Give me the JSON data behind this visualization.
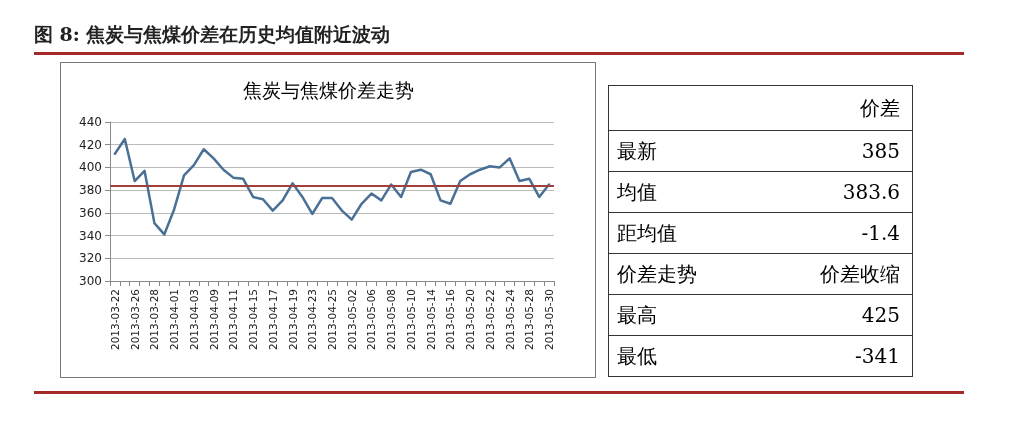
{
  "chart_data": [
    {
      "type": "line",
      "title": "图 8: 焦炭与焦煤价差在历史均值附近波动",
      "subtitle": "焦炭与焦煤价差走势",
      "categories": [
        "2013-03-22",
        null,
        "2013-03-26",
        null,
        "2013-03-28",
        null,
        "2013-04-01",
        null,
        "2013-04-03",
        null,
        "2013-04-09",
        null,
        "2013-04-11",
        null,
        "2013-04-15",
        null,
        "2013-04-17",
        null,
        "2013-04-19",
        null,
        "2013-04-23",
        null,
        "2013-04-25",
        null,
        "2013-05-02",
        null,
        "2013-05-06",
        null,
        "2013-05-08",
        null,
        "2013-05-10",
        null,
        "2013-05-14",
        null,
        "2013-05-16",
        null,
        "2013-05-20",
        null,
        "2013-05-22",
        null,
        "2013-05-24",
        null,
        "2013-05-28",
        null,
        "2013-05-30"
      ],
      "series": [
        {
          "color": "#4a7096",
          "values": [
            412,
            425,
            388,
            397,
            351,
            341,
            363,
            393,
            402,
            416,
            408,
            398,
            391,
            390,
            374,
            372,
            362,
            371,
            386,
            374,
            359,
            373,
            373,
            362,
            354,
            368,
            377,
            371,
            385,
            374,
            396,
            398,
            394,
            371,
            368,
            388,
            394,
            398,
            401,
            400,
            408,
            388,
            390,
            374,
            385
          ]
        }
      ],
      "ylim": [
        300,
        440
      ],
      "yticks": [
        300,
        320,
        340,
        360,
        380,
        400,
        420,
        440
      ],
      "ref_lines": [
        {
          "axis": "y",
          "value": 383.6,
          "color": "#a0403c"
        }
      ],
      "grid": "y",
      "marker": "none",
      "line_style": "solid"
    },
    {
      "type": "other",
      "annotations": [
        "价差",
        "最新",
        "385",
        "均值",
        "383.6",
        "距均值",
        "-1.4",
        "价差走势",
        "价差收缩",
        "最高",
        "425",
        "最低",
        "-341"
      ]
    }
  ]
}
